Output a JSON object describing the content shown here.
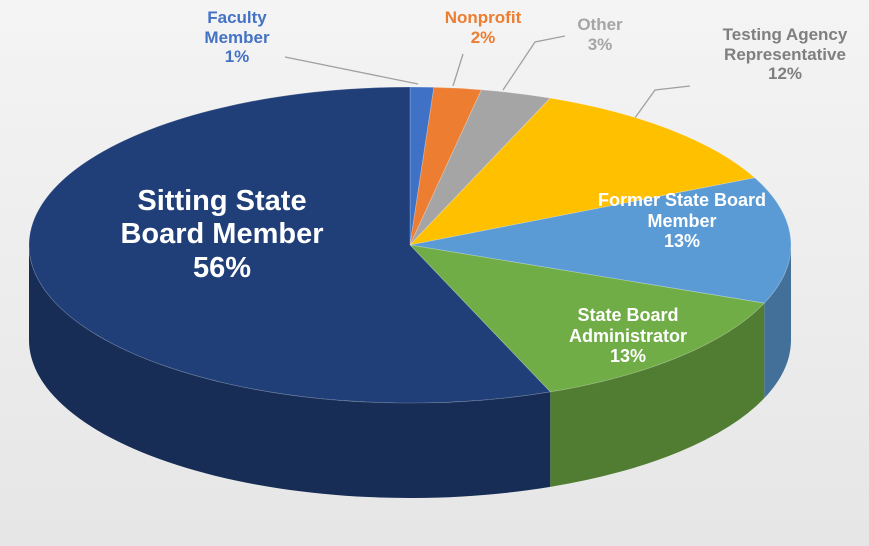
{
  "chart_data": {
    "type": "pie",
    "categories": [
      "Faculty Member",
      "Nonprofit",
      "Other",
      "Testing Agency Representative",
      "Former State Board Member",
      "State Board Administrator",
      "Sitting State Board Member"
    ],
    "values": [
      1,
      2,
      3,
      12,
      13,
      13,
      56
    ],
    "value_labels": [
      "1%",
      "2%",
      "3%",
      "12%",
      "13%",
      "13%",
      "56%"
    ],
    "colors": [
      "#3f72c6",
      "#ed7d31",
      "#a5a5a5",
      "#ffc000",
      "#5b9bd5",
      "#70ad47",
      "#203f78"
    ]
  }
}
